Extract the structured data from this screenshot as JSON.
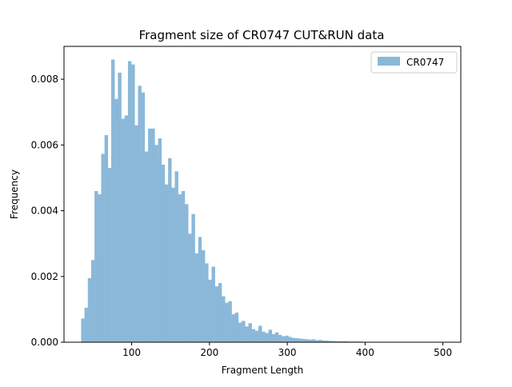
{
  "chart_data": {
    "type": "bar",
    "title": "Fragment size of CR0747 CUT&RUN data",
    "xlabel": "Fragment Length",
    "ylabel": "Frequency",
    "xlim": [
      13,
      523
    ],
    "ylim": [
      0,
      0.009
    ],
    "xticks": [
      100,
      200,
      300,
      400,
      500
    ],
    "xtick_labels": [
      "100",
      "200",
      "300",
      "400",
      "500"
    ],
    "yticks": [
      0,
      0.002,
      0.004,
      0.006,
      0.008
    ],
    "ytick_labels": [
      "0.000",
      "0.002",
      "0.004",
      "0.006",
      "0.008"
    ],
    "grid": false,
    "legend": {
      "position": "top-right",
      "entries": [
        "CR0747"
      ]
    },
    "series": [
      {
        "name": "CR0747",
        "color": "#8bb8d9",
        "bin_start": 35,
        "bin_width": 4.3,
        "values": [
          0.00072,
          0.00105,
          0.00195,
          0.0025,
          0.0046,
          0.0045,
          0.00573,
          0.0063,
          0.0053,
          0.0086,
          0.0074,
          0.0082,
          0.0068,
          0.0069,
          0.00855,
          0.00845,
          0.0066,
          0.0078,
          0.0076,
          0.0058,
          0.0065,
          0.0065,
          0.006,
          0.0062,
          0.0054,
          0.0048,
          0.0056,
          0.0047,
          0.0052,
          0.0045,
          0.0046,
          0.0042,
          0.0033,
          0.0039,
          0.0027,
          0.0032,
          0.0028,
          0.0024,
          0.0019,
          0.0023,
          0.0017,
          0.0018,
          0.0014,
          0.0012,
          0.00125,
          0.00085,
          0.0009,
          0.0006,
          0.00065,
          0.00048,
          0.00058,
          0.0004,
          0.00035,
          0.0005,
          0.00032,
          0.00028,
          0.00038,
          0.00025,
          0.0003,
          0.00022,
          0.00018,
          0.0002,
          0.00016,
          0.00013,
          0.00012,
          0.00011,
          0.0001,
          9e-05,
          8e-05,
          9e-05,
          6e-05,
          7e-05,
          5e-05,
          5e-05,
          4e-05,
          4e-05,
          3e-05,
          3e-05,
          3e-05,
          3e-05,
          2e-05,
          2e-05,
          2e-05,
          2e-05,
          1e-05,
          1e-05,
          1e-05,
          1e-05,
          1e-05,
          1e-05,
          1e-05,
          1e-05,
          1e-05,
          1e-05,
          1e-05,
          1e-05,
          1e-05,
          1e-05,
          1e-05,
          1e-05
        ]
      }
    ]
  }
}
